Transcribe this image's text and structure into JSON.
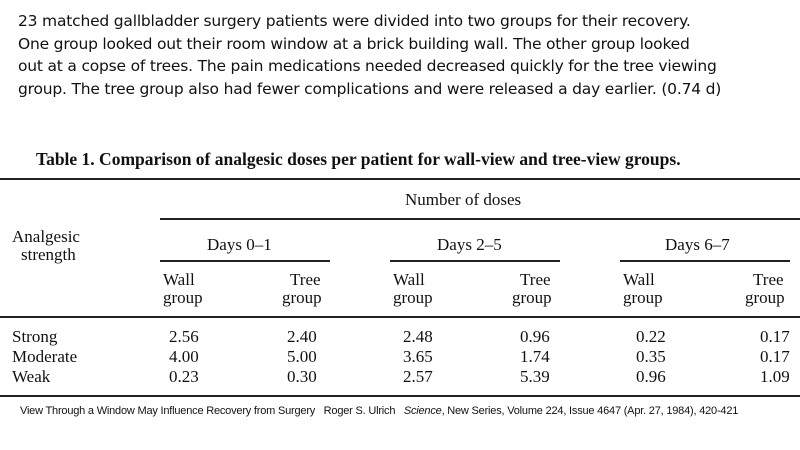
{
  "intro_lines": [
    "23 matched gallbladder surgery patients were divided into two groups for their recovery.",
    "One group looked out their room window at a brick building wall. The other group looked",
    "out at a copse of trees. The pain medications needed decreased quickly for the tree viewing",
    "group. The tree group also had fewer complications and were released a day earlier. (0.74 d)"
  ],
  "table": {
    "title": "Table 1. Comparison of analgesic doses per patient for wall-view and tree-view groups.",
    "spanner": "Number of doses",
    "row_header": [
      "Analgesic",
      "strength"
    ],
    "periods": [
      "Days 0–1",
      "Days 2–5",
      "Days 6–7"
    ],
    "groups": [
      [
        "Wall",
        "group"
      ],
      [
        "Tree",
        "group"
      ]
    ],
    "rows": [
      {
        "label": "Strong",
        "values": [
          "2.56",
          "2.40",
          "2.48",
          "0.96",
          "0.22",
          "0.17"
        ]
      },
      {
        "label": "Moderate",
        "values": [
          "4.00",
          "5.00",
          "3.65",
          "1.74",
          "0.35",
          "0.17"
        ]
      },
      {
        "label": "Weak",
        "values": [
          "0.23",
          "0.30",
          "2.57",
          "5.39",
          "0.96",
          "1.09"
        ]
      }
    ]
  },
  "citation": {
    "pre": "View Through a Window May Influence Recovery from Surgery   Roger S. Ulrich   ",
    "journal": "Science",
    "post": ", New Series, Volume 224, Issue 4647 (Apr. 27, 1984), 420-421"
  }
}
